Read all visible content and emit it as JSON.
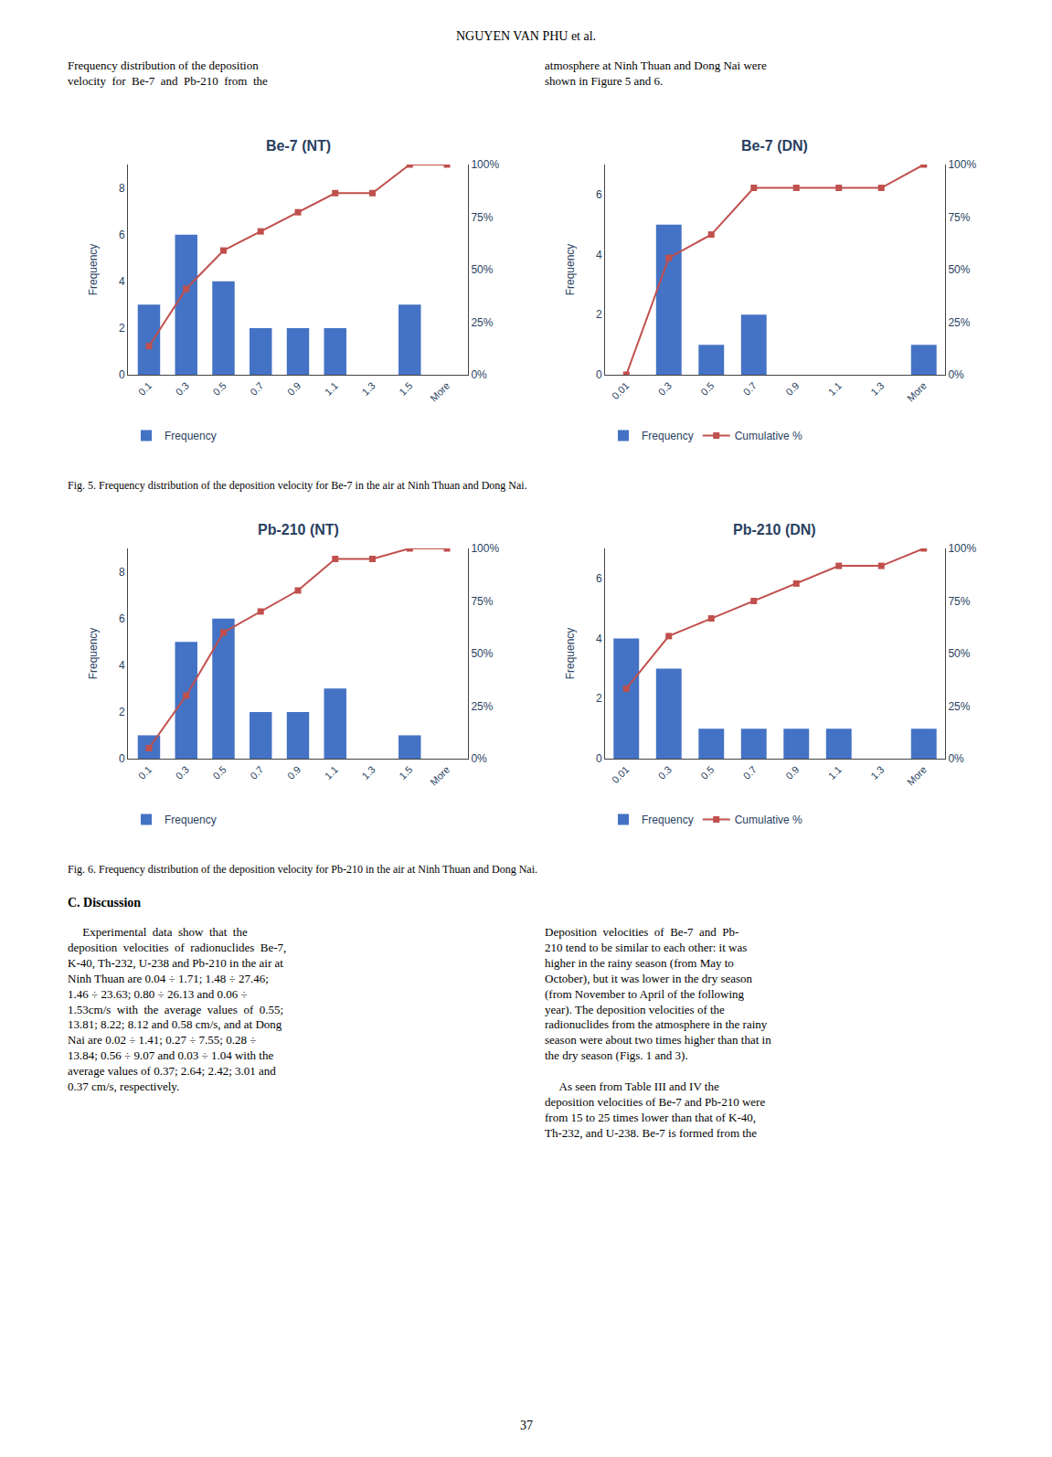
{
  "title": "NGUYEN VAN PHU et al.",
  "annotations": [
    "Frequency distribution of the deposition\nvelocity  for  Be-7  and  Pb-210  from  the",
    "atmosphere at Ninh Thuan and Dong Nai were\nshown in Figure 5 and 6.",
    "Fig. 5. Frequency distribution of the deposition velocity for Be-7 in the air at Ninh Thuan and Dong Nai.",
    "Fig. 6. Frequency distribution of the deposition velocity for Pb-210 in the air at Ninh Thuan and Dong Nai.",
    "C. Discussion",
    "     Experimental  data  show  that  the\ndeposition  velocities  of  radionuclides  Be-7,\nK-40, Th-232, U-238 and Pb-210 in the air at\nNinh Thuan are 0.04 ÷ 1.71; 1.48 ÷ 27.46;\n1.46 ÷ 23.63; 0.80 ÷ 26.13 and 0.06 ÷\n1.53cm/s  with  the  average  values  of  0.55;\n13.81; 8.22; 8.12 and 0.58 cm/s, and at Dong\nNai are 0.02 ÷ 1.41; 0.27 ÷ 7.55; 0.28 ÷\n13.84; 0.56 ÷ 9.07 and 0.03 ÷ 1.04 with the\naverage values of 0.37; 2.64; 2.42; 3.01 and\n0.37 cm/s, respectively.",
    "Deposition  velocities  of  Be-7  and  Pb-\n210 tend to be similar to each other: it was\nhigher in the rainy season (from May to\nOctober), but it was lower in the dry season\n(from November to April of the following\nyear). The deposition velocities of the\nradionuclides from the atmosphere in the rainy\nseason were about two times higher than that in\nthe dry season (Figs. 1 and 3).\n\n     As seen from Table III and IV the\ndeposition velocities of Be-7 and Pb-210 were\nfrom 15 to 25 times lower than that of K-40,\nTh-232, and U-238. Be-7 is formed from the",
    "37"
  ],
  "chart_data": [
    {
      "type": "bar",
      "title": "Be-7 (NT)",
      "categories": [
        "0.1",
        "0.3",
        "0.5",
        "0.7",
        "0.9",
        "1.1",
        "1.3",
        "1.5",
        "More"
      ],
      "series": [
        {
          "name": "Frequency",
          "type": "bar",
          "color": "#4472C4",
          "values": [
            3,
            6,
            4,
            2,
            2,
            2,
            0,
            3,
            0
          ]
        },
        {
          "type": "line",
          "axis": "y2",
          "color": "#C0504D",
          "marker": "square",
          "line_style": "solid",
          "values": [
            13.6,
            40.9,
            59.1,
            68.2,
            77.3,
            86.4,
            86.4,
            100.0,
            100.0
          ]
        }
      ],
      "ylabel": "Frequency",
      "ylim": [
        0,
        9
      ],
      "yticks": [
        0,
        2,
        4,
        6,
        8
      ],
      "y2lim": [
        0,
        100
      ],
      "y2ticks": [
        {
          "value": 0,
          "label": "0%"
        },
        {
          "value": 25,
          "label": "25%"
        },
        {
          "value": 50,
          "label": "50%"
        },
        {
          "value": 75,
          "label": "75%"
        },
        {
          "value": 100,
          "label": "100%"
        }
      ],
      "grid": false,
      "legend": "bottom"
    },
    {
      "type": "bar",
      "title": "Be-7 (DN)",
      "categories": [
        "0.01",
        "0.3",
        "0.5",
        "0.7",
        "0.9",
        "1.1",
        "1.3",
        "More"
      ],
      "series": [
        {
          "name": "Frequency",
          "type": "bar",
          "color": "#4472C4",
          "values": [
            0,
            5,
            1,
            2,
            0,
            0,
            0,
            1
          ]
        },
        {
          "name": "Cumulative %",
          "type": "line",
          "axis": "y2",
          "color": "#C0504D",
          "marker": "square",
          "line_style": "solid",
          "values": [
            0.0,
            55.6,
            66.7,
            88.9,
            88.9,
            88.9,
            88.9,
            100.0
          ]
        }
      ],
      "ylabel": "Frequency",
      "ylim": [
        0,
        7
      ],
      "yticks": [
        0,
        2,
        4,
        6
      ],
      "y2lim": [
        0,
        100
      ],
      "y2ticks": [
        {
          "value": 0,
          "label": "0%"
        },
        {
          "value": 25,
          "label": "25%"
        },
        {
          "value": 50,
          "label": "50%"
        },
        {
          "value": 75,
          "label": "75%"
        },
        {
          "value": 100,
          "label": "100%"
        }
      ],
      "grid": false,
      "legend": "bottom"
    },
    {
      "type": "bar",
      "title": "Pb-210 (NT)",
      "categories": [
        "0.1",
        "0.3",
        "0.5",
        "0.7",
        "0.9",
        "1.1",
        "1.3",
        "1.5",
        "More"
      ],
      "series": [
        {
          "name": "Frequency",
          "type": "bar",
          "color": "#4472C4",
          "values": [
            1,
            5,
            6,
            2,
            2,
            3,
            0,
            1,
            0
          ]
        },
        {
          "type": "line",
          "axis": "y2",
          "color": "#C0504D",
          "marker": "square",
          "line_style": "solid",
          "values": [
            5.0,
            30.0,
            60.0,
            70.0,
            80.0,
            95.0,
            95.0,
            100.0,
            100.0
          ]
        }
      ],
      "ylabel": "Frequency",
      "ylim": [
        0,
        9
      ],
      "yticks": [
        0,
        2,
        4,
        6,
        8
      ],
      "y2lim": [
        0,
        100
      ],
      "y2ticks": [
        {
          "value": 0,
          "label": "0%"
        },
        {
          "value": 25,
          "label": "25%"
        },
        {
          "value": 50,
          "label": "50%"
        },
        {
          "value": 75,
          "label": "75%"
        },
        {
          "value": 100,
          "label": "100%"
        }
      ],
      "grid": false,
      "legend": "bottom"
    },
    {
      "type": "bar",
      "title": "Pb-210 (DN)",
      "categories": [
        "0.01",
        "0.3",
        "0.5",
        "0.7",
        "0.9",
        "1.1",
        "1.3",
        "More"
      ],
      "series": [
        {
          "name": "Frequency",
          "type": "bar",
          "color": "#4472C4",
          "values": [
            4,
            3,
            1,
            1,
            1,
            1,
            0,
            1
          ]
        },
        {
          "name": "Cumulative %",
          "type": "line",
          "axis": "y2",
          "color": "#C0504D",
          "marker": "square",
          "line_style": "solid",
          "values": [
            33.3,
            58.3,
            66.7,
            75.0,
            83.3,
            91.7,
            91.7,
            100.0
          ]
        }
      ],
      "ylabel": "Frequency",
      "ylim": [
        0,
        7
      ],
      "yticks": [
        0,
        2,
        4,
        6
      ],
      "y2lim": [
        0,
        100
      ],
      "y2ticks": [
        {
          "value": 0,
          "label": "0%"
        },
        {
          "value": 25,
          "label": "25%"
        },
        {
          "value": 50,
          "label": "50%"
        },
        {
          "value": 75,
          "label": "75%"
        },
        {
          "value": 100,
          "label": "100%"
        }
      ],
      "grid": false,
      "legend": "bottom"
    }
  ]
}
